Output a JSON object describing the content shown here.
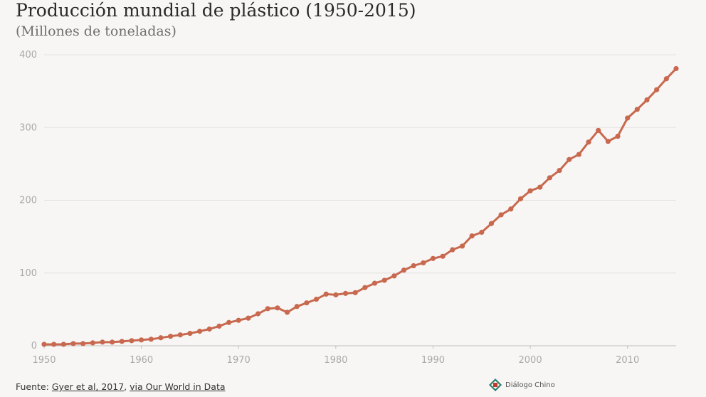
{
  "chart_data": {
    "type": "line",
    "title": "Producción mundial de plástico (1950-2015)",
    "subtitle": "(Millones de toneladas)",
    "xlabel": "",
    "ylabel": "",
    "xlim": [
      1950,
      2015
    ],
    "ylim": [
      0,
      400
    ],
    "x_ticks": [
      1950,
      1960,
      1970,
      1980,
      1990,
      2000,
      2010
    ],
    "y_ticks": [
      0,
      100,
      200,
      300,
      400
    ],
    "grid": true,
    "color": "#c8694f",
    "series": [
      {
        "name": "Producción mundial de plástico",
        "x": [
          1950,
          1951,
          1952,
          1953,
          1954,
          1955,
          1956,
          1957,
          1958,
          1959,
          1960,
          1961,
          1962,
          1963,
          1964,
          1965,
          1966,
          1967,
          1968,
          1969,
          1970,
          1971,
          1972,
          1973,
          1974,
          1975,
          1976,
          1977,
          1978,
          1979,
          1980,
          1981,
          1982,
          1983,
          1984,
          1985,
          1986,
          1987,
          1988,
          1989,
          1990,
          1991,
          1992,
          1993,
          1994,
          1995,
          1996,
          1997,
          1998,
          1999,
          2000,
          2001,
          2002,
          2003,
          2004,
          2005,
          2006,
          2007,
          2008,
          2009,
          2010,
          2011,
          2012,
          2013,
          2014,
          2015
        ],
        "values": [
          2,
          2,
          2,
          3,
          3,
          4,
          5,
          5,
          6,
          7,
          8,
          9,
          11,
          13,
          15,
          17,
          20,
          23,
          27,
          32,
          35,
          38,
          44,
          51,
          52,
          46,
          54,
          59,
          64,
          71,
          70,
          72,
          73,
          80,
          86,
          90,
          96,
          104,
          110,
          114,
          120,
          123,
          132,
          137,
          151,
          156,
          168,
          180,
          188,
          202,
          213,
          218,
          231,
          241,
          256,
          263,
          280,
          296,
          281,
          288,
          313,
          325,
          338,
          352,
          367,
          381
        ]
      }
    ]
  },
  "footer": {
    "prefix": "Fuente: ",
    "source_link": "Gyer et al, 2017",
    "separator": ", ",
    "owid_link": "via Our World in Data"
  },
  "brand": {
    "name": "Diálogo Chino",
    "icon": "dialogo-chino-logo-icon"
  }
}
